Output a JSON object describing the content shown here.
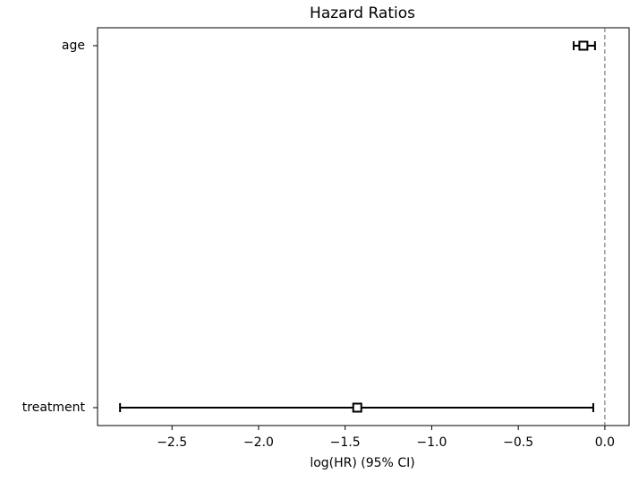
{
  "chart_data": {
    "type": "forest",
    "title": "Hazard Ratios",
    "x_label": "log(HR) (95% CI)",
    "categories": [
      "age",
      "treatment"
    ],
    "values": [
      -0.124,
      -1.43
    ],
    "lower": [
      -0.18,
      -2.8
    ],
    "upper": [
      -0.057,
      -0.067
    ],
    "color": "#000000",
    "xlim": [
      -2.93,
      0.14
    ],
    "xticks": [
      {
        "value": -2.5,
        "label": "−2.5"
      },
      {
        "value": -2.0,
        "label": "−2.0"
      },
      {
        "value": -1.5,
        "label": "−1.5"
      },
      {
        "value": -1.0,
        "label": "−1.0"
      },
      {
        "value": -0.5,
        "label": "−0.5"
      },
      {
        "value": 0.0,
        "label": "0.0"
      }
    ],
    "reference_line": 0
  }
}
